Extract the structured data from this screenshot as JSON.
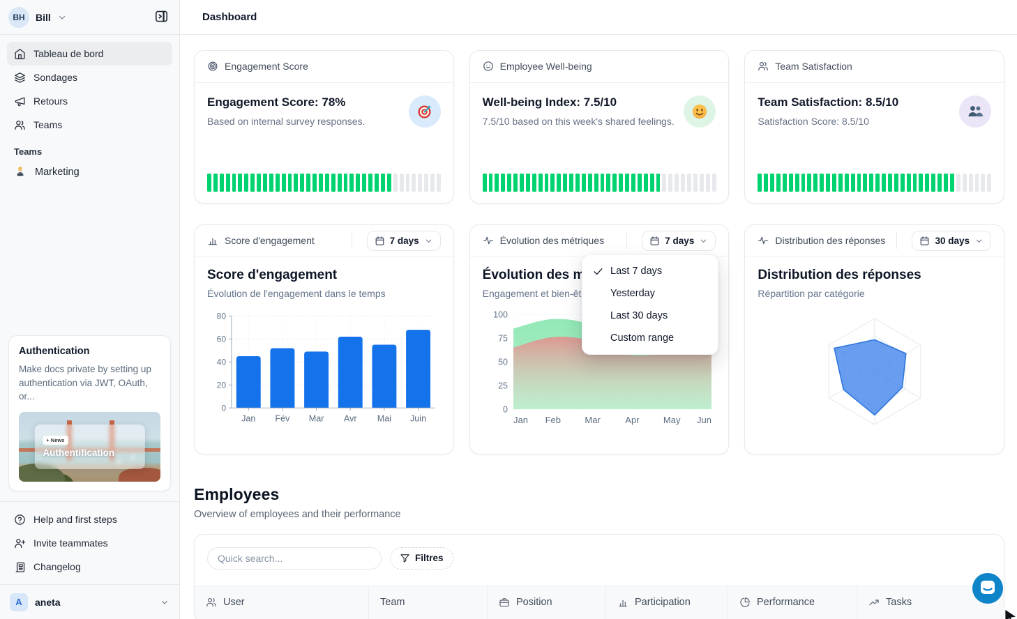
{
  "header": {
    "title": "Dashboard"
  },
  "sidebar": {
    "workspace": {
      "initials": "BH",
      "name": "Bill"
    },
    "nav_items": [
      {
        "label": "Tableau de bord",
        "icon": "home-icon",
        "active": true
      },
      {
        "label": "Sondages",
        "icon": "layers-icon",
        "active": false
      },
      {
        "label": "Retours",
        "icon": "megaphone-icon",
        "active": false
      },
      {
        "label": "Teams",
        "icon": "users-icon",
        "active": false
      }
    ],
    "teams_section": {
      "label": "Teams",
      "items": [
        {
          "label": "Marketing",
          "icon": "technologist-emoji-icon"
        }
      ]
    },
    "promo_card": {
      "title": "Authentication",
      "body": "Make docs private by setting up authentication via JWT, OAuth, or...",
      "image_badge": "+ News",
      "image_title": "Authentification"
    },
    "footer_items": [
      {
        "label": "Help and first steps",
        "icon": "help-circle-icon"
      },
      {
        "label": "Invite teammates",
        "icon": "user-plus-icon"
      },
      {
        "label": "Changelog",
        "icon": "newspaper-icon"
      }
    ],
    "account": {
      "initial": "A",
      "name": "aneta"
    }
  },
  "stat_cards": [
    {
      "header_label": "Engagement Score",
      "header_icon": "target-rings-icon",
      "title": "Engagement Score: 78%",
      "subtitle": "Based on internal survey responses.",
      "emoji_icon": "target-emoji-icon",
      "emoji_bg": "#d9eafc",
      "progress_percent": 78
    },
    {
      "header_label": "Employee Well-being",
      "header_icon": "smiley-icon",
      "title": "Well-being Index: 7.5/10",
      "subtitle": "7.5/10 based on this week's shared feelings.",
      "emoji_icon": "smile-emoji-icon",
      "emoji_bg": "#def5e6",
      "progress_percent": 75
    },
    {
      "header_label": "Team Satisfaction",
      "header_icon": "users-icon",
      "title": "Team Satisfaction: 8.5/10",
      "subtitle": "Satisfaction Score: 8.5/10",
      "emoji_icon": "busts-emoji-icon",
      "emoji_bg": "#ece5f7",
      "progress_percent": 85
    }
  ],
  "progress_style": {
    "segments": 38,
    "on_color": "#00d36f",
    "off_color": "#e7e9ed"
  },
  "chart_cards": [
    {
      "header_label": "Score d'engagement",
      "header_icon": "bar-chart-icon",
      "range_label": "7 days",
      "title": "Score d'engagement",
      "subtitle": "Évolution de l'engagement dans le temps"
    },
    {
      "header_label": "Évolution des métriques",
      "header_icon": "activity-icon",
      "range_label": "7 days",
      "title": "Évolution des métriques",
      "subtitle": "Engagement et bien-être"
    },
    {
      "header_label": "Distribution des réponses",
      "header_icon": "activity-icon",
      "range_label": "30 days",
      "title": "Distribution des réponses",
      "subtitle": "Répartition par catégorie"
    }
  ],
  "range_menu": {
    "items": [
      {
        "label": "Last 7 days",
        "checked": true
      },
      {
        "label": "Yesterday",
        "checked": false
      },
      {
        "label": "Last 30 days",
        "checked": false
      },
      {
        "label": "Custom range",
        "checked": false
      }
    ]
  },
  "chart_data": [
    {
      "type": "bar",
      "title": "Score d'engagement",
      "categories": [
        "Jan",
        "Fév",
        "Mar",
        "Avr",
        "Mai",
        "Juin"
      ],
      "values": [
        45,
        52,
        49,
        62,
        55,
        68
      ],
      "xlabel": "",
      "ylabel": "",
      "ylim": [
        0,
        80
      ],
      "yticks": [
        0,
        20,
        40,
        60,
        80
      ],
      "bar_color": "#1472eb",
      "grid": true,
      "legend": false
    },
    {
      "type": "area",
      "title": "Évolution des métriques",
      "x": [
        "Jan",
        "Feb",
        "Mar",
        "Apr",
        "May",
        "Jun"
      ],
      "series": [
        {
          "name": "bien-être",
          "color": "#8ee4b2",
          "values": [
            85,
            95,
            88,
            60,
            63,
            66
          ]
        },
        {
          "name": "engagement",
          "color": "#eda3a3",
          "values": [
            65,
            76,
            72,
            57,
            60,
            62
          ]
        }
      ],
      "ylim": [
        0,
        100
      ],
      "yticks": [
        0,
        25,
        50,
        75,
        100
      ],
      "grid": true,
      "legend": false
    },
    {
      "type": "radar",
      "title": "Distribution des réponses",
      "axes_count": 6,
      "values": [
        60,
        68,
        60,
        82,
        68,
        88
      ],
      "max": 100,
      "grid_levels": 3,
      "fill_color": "rgba(66,133,235,0.8)",
      "stroke_color": "#2e77dd"
    }
  ],
  "employees": {
    "title": "Employees",
    "subtitle": "Overview of employees and their performance",
    "search_placeholder": "Quick search...",
    "filter_label": "Filtres",
    "columns": [
      {
        "label": "User",
        "icon": "users-icon"
      },
      {
        "label": "Team",
        "icon": null
      },
      {
        "label": "Position",
        "icon": "briefcase-icon"
      },
      {
        "label": "Participation",
        "icon": "bar-chart-icon"
      },
      {
        "label": "Performance",
        "icon": "pie-chart-icon"
      },
      {
        "label": "Tasks",
        "icon": "trending-up-icon"
      }
    ]
  },
  "chat_button": {
    "color": "#0f84c8"
  }
}
